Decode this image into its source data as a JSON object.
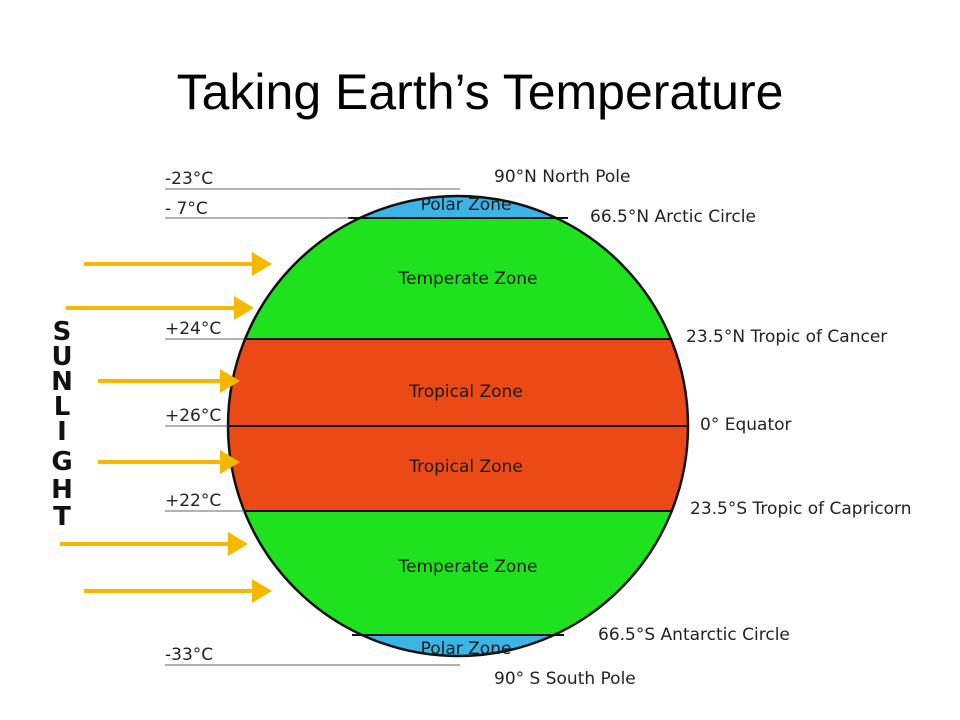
{
  "title": "Taking Earth’s Temperature",
  "sunlight_label": [
    "S",
    "U",
    "N",
    "L",
    "I",
    "G",
    "H",
    "T"
  ],
  "colors": {
    "polar": "#3cb4e6",
    "temperate": "#1ee21e",
    "tropical": "#eb4a16",
    "arrow": "#f4b800",
    "line": "#666666"
  },
  "temperatures": {
    "north_pole": "-23°C",
    "arctic": "- 7°C",
    "tropic_cancer": "+24°C",
    "equator": "+26°C",
    "tropic_capricorn": "+22°C",
    "south_pole": "-33°C"
  },
  "latitudes": {
    "north_pole": "90°N North Pole",
    "arctic_circle": "66.5°N Arctic Circle",
    "tropic_cancer": "23.5°N Tropic of Cancer",
    "equator": "0° Equator",
    "tropic_capricorn": "23.5°S Tropic of Capricorn",
    "antarctic_circle": "66.5°S Antarctic Circle",
    "south_pole": "90° S South Pole"
  },
  "zones": {
    "polar_north": "Polar Zone",
    "temperate_north": "Temperate Zone",
    "tropical_north": "Tropical Zone",
    "tropical_south": "Tropical Zone",
    "temperate_south": "Temperate Zone",
    "polar_south": "Polar Zone"
  }
}
